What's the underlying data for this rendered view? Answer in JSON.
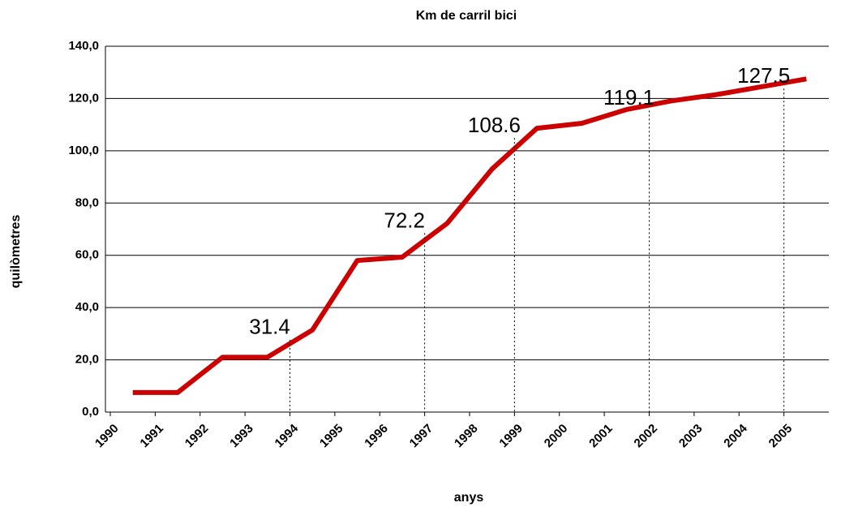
{
  "chart_data": {
    "type": "line",
    "title": "Km de carril bici",
    "xlabel": "anys",
    "ylabel": "quilòmetres",
    "categories": [
      "1990",
      "1991",
      "1992",
      "1993",
      "1994",
      "1995",
      "1996",
      "1997",
      "1998",
      "1999",
      "2000",
      "2001",
      "2002",
      "2003",
      "2004",
      "2005"
    ],
    "series": [
      {
        "name": "Km de carril bici",
        "color": "#cc0000",
        "values": [
          7.5,
          7.5,
          21,
          21,
          31.4,
          58,
          59.3,
          72.2,
          93,
          108.6,
          110.5,
          115.8,
          119.1,
          121.5,
          124.5,
          127.5
        ],
        "value_labels": [
          null,
          null,
          null,
          null,
          "31.4",
          null,
          null,
          "72.2",
          null,
          "108.6",
          null,
          null,
          "119.1",
          null,
          null,
          "127.5"
        ]
      }
    ],
    "ylim": [
      0,
      140
    ],
    "yticks": [
      {
        "value": 0,
        "label": "0,0"
      },
      {
        "value": 20,
        "label": "20,0"
      },
      {
        "value": 40,
        "label": "40,0"
      },
      {
        "value": 60,
        "label": "60,0"
      },
      {
        "value": 80,
        "label": "80,0"
      },
      {
        "value": 100,
        "label": "100,0"
      },
      {
        "value": 120,
        "label": "120,0"
      },
      {
        "value": 140,
        "label": "140,0"
      }
    ],
    "grid": true
  }
}
